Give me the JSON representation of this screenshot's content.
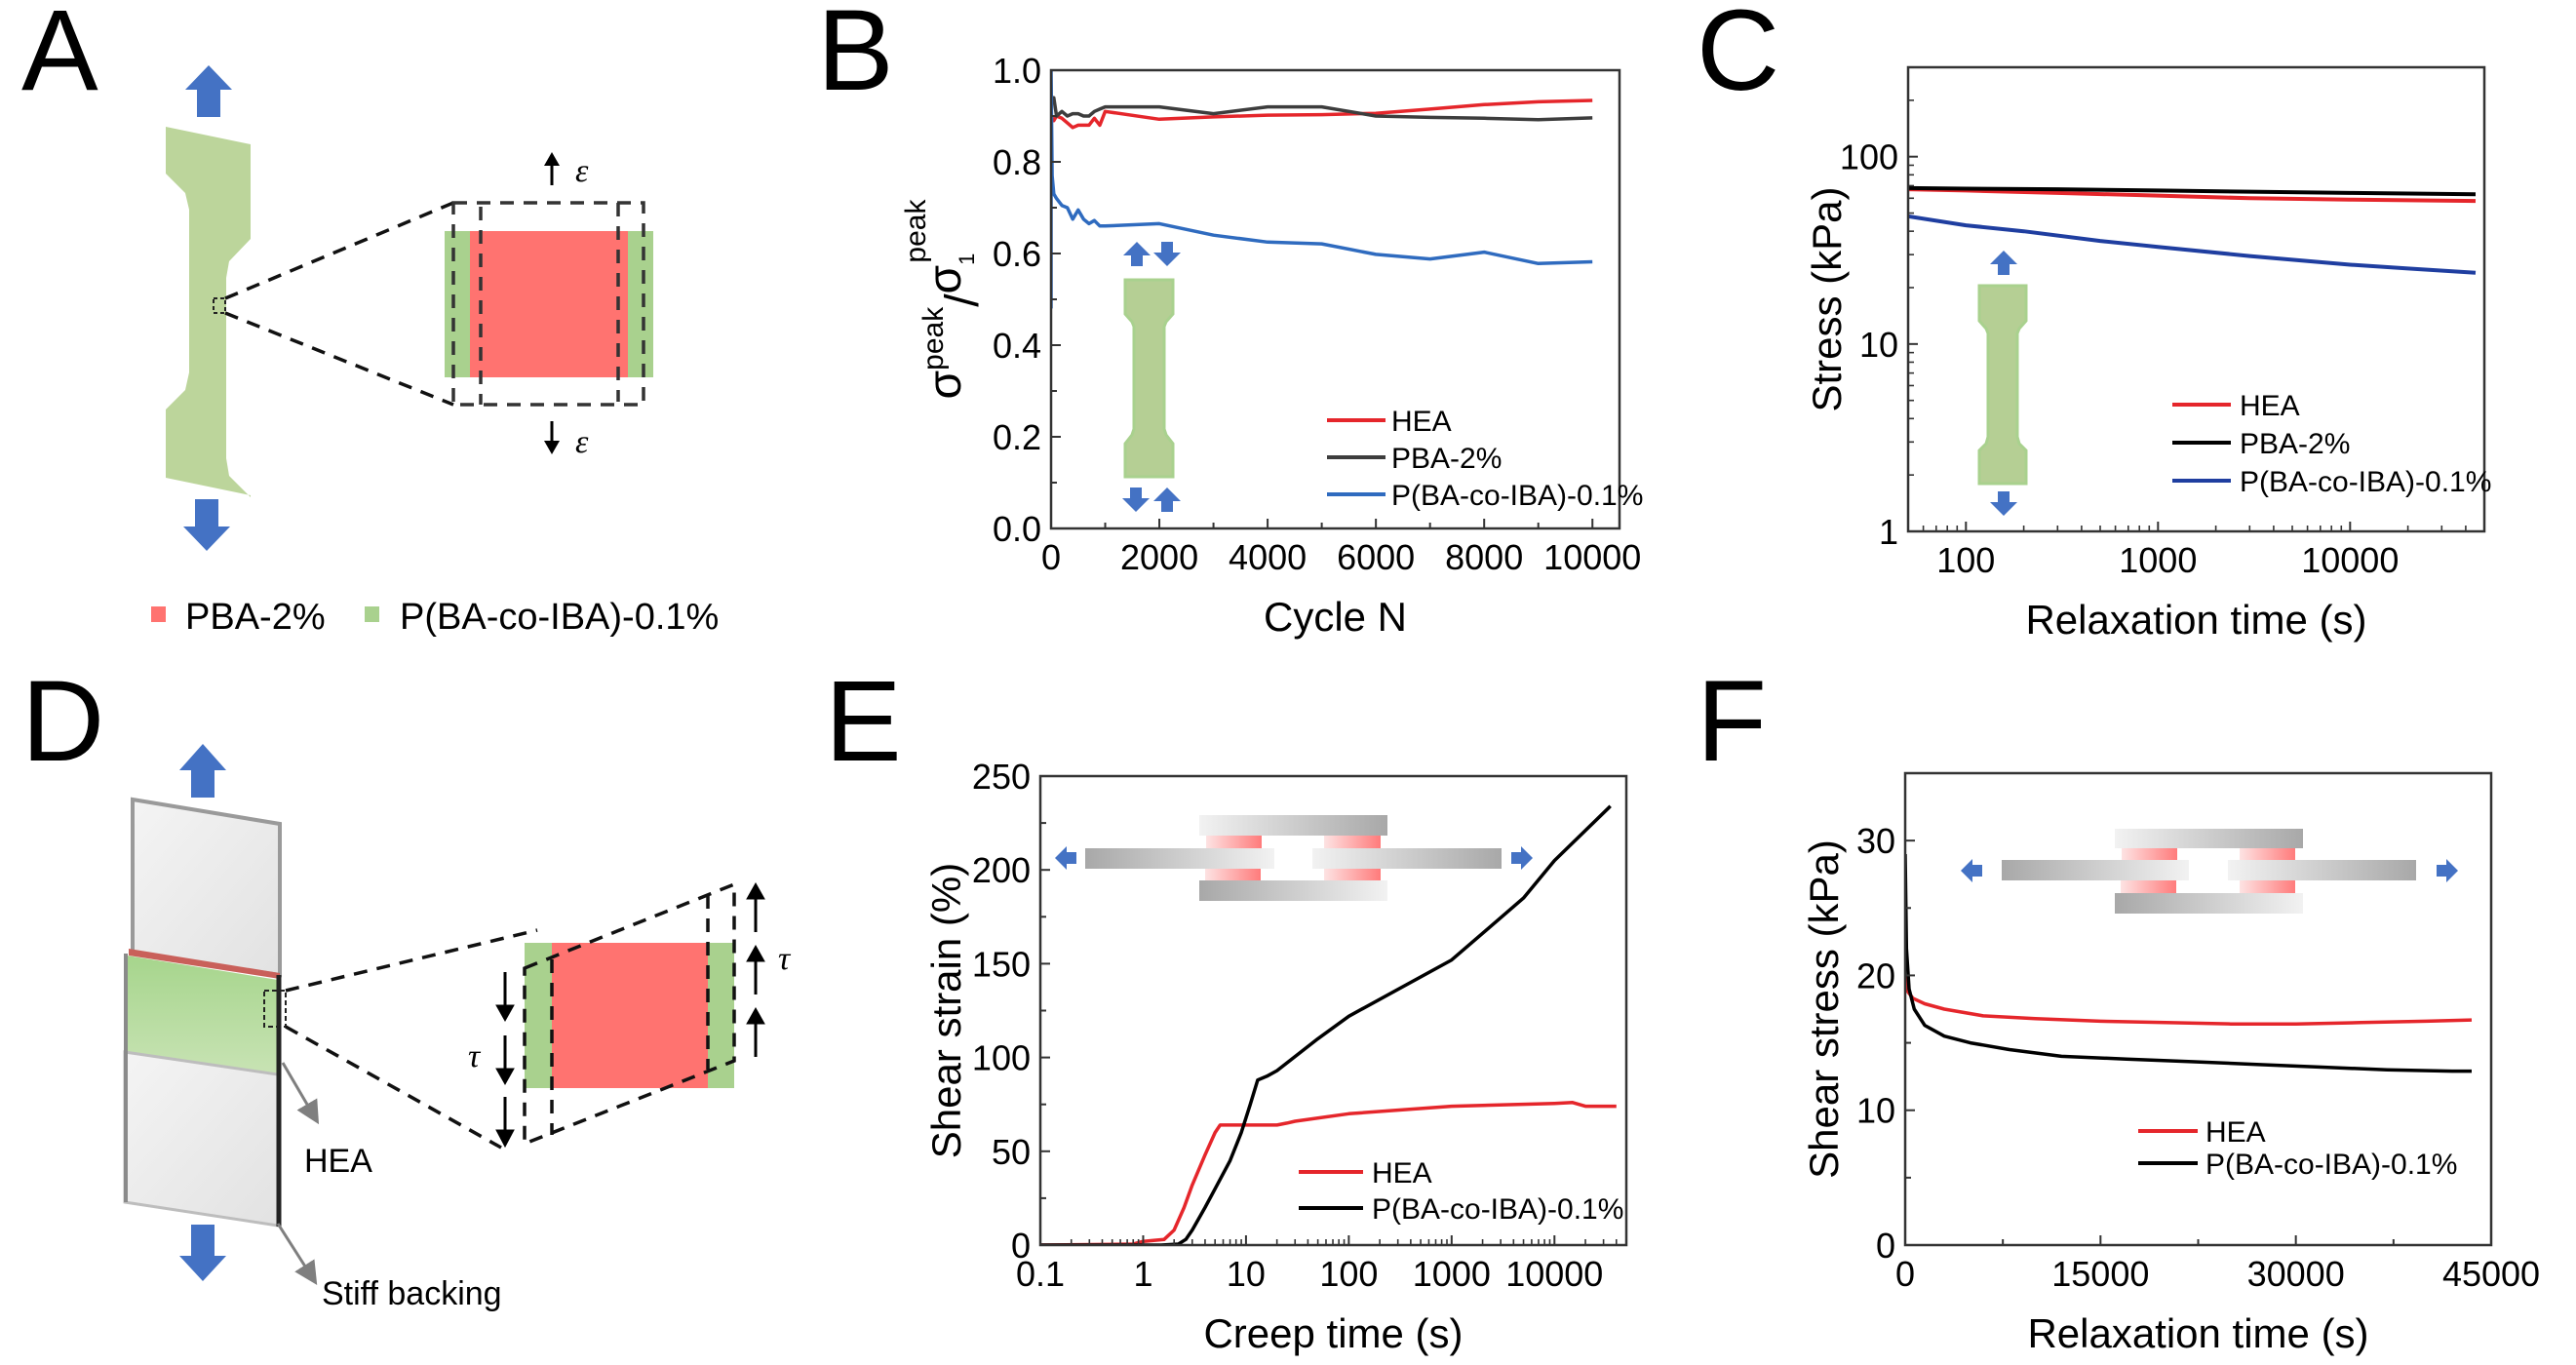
{
  "figure": {
    "panel_labels": [
      "A",
      "B",
      "C",
      "D",
      "E",
      "F"
    ],
    "colors": {
      "pba": "#ff7370",
      "copolymer": "#a9d18e",
      "specimen": "#bcd59b",
      "arrow_blue": "#4472c4",
      "hea_line": "#e5262b",
      "pba_line_b": "#3d3d3d",
      "black_line": "#000000",
      "blue_line_b": "#2f6bbf",
      "blue_line_c": "#1f3ea0"
    }
  },
  "panel_a": {
    "strain_symbol": "ε",
    "legend": [
      {
        "label": "PBA-2%",
        "color": "#ff7370"
      },
      {
        "label": "P(BA-co-IBA)-0.1%",
        "color": "#a9d18e"
      }
    ]
  },
  "panel_d": {
    "shear_symbol": "τ",
    "annotations": {
      "hea": "HEA",
      "backing": "Stiff backing"
    }
  },
  "chart_data": [
    {
      "id": "B",
      "type": "line",
      "title": "",
      "xlabel": "Cycle N",
      "ylabel_parts": {
        "main": "σ",
        "sup1": "peak",
        "slash": "/",
        "main2": "σ",
        "sub2": "1",
        "sup2": "peak"
      },
      "xscale": "linear",
      "xlim": [
        0,
        10500
      ],
      "ylim": [
        0,
        1.0
      ],
      "xticks": [
        0,
        2000,
        4000,
        6000,
        8000,
        10000
      ],
      "xtick_labels": [
        "0",
        "2000",
        "4000",
        "6000",
        "8000",
        "10000"
      ],
      "xminor": [
        1000,
        3000,
        5000,
        7000,
        9000
      ],
      "yticks": [
        0,
        0.2,
        0.4,
        0.6,
        0.8,
        1.0
      ],
      "ytick_labels": [
        "0.0",
        "0.2",
        "0.4",
        "0.6",
        "0.8",
        "1.0"
      ],
      "yminor": [
        0.1,
        0.3,
        0.5,
        0.7,
        0.9
      ],
      "legend_position": "bottom-right",
      "series": [
        {
          "name": "HEA",
          "color": "#e5262b",
          "x": [
            0,
            50,
            100,
            200,
            300,
            400,
            500,
            600,
            700,
            800,
            900,
            1000,
            2000,
            3000,
            4000,
            5000,
            6000,
            7000,
            8000,
            9000,
            10000
          ],
          "y": [
            0.9,
            0.89,
            0.9,
            0.895,
            0.885,
            0.875,
            0.88,
            0.88,
            0.88,
            0.895,
            0.88,
            0.91,
            0.893,
            0.898,
            0.902,
            0.903,
            0.906,
            0.915,
            0.925,
            0.931,
            0.934
          ]
        },
        {
          "name": "PBA-2%",
          "color": "#3d3d3d",
          "x": [
            0,
            50,
            100,
            200,
            300,
            400,
            500,
            600,
            700,
            800,
            900,
            1000,
            2000,
            3000,
            4000,
            5000,
            6000,
            7000,
            8000,
            9000,
            10000
          ],
          "y": [
            0.93,
            0.94,
            0.9,
            0.91,
            0.9,
            0.905,
            0.905,
            0.9,
            0.9,
            0.91,
            0.915,
            0.92,
            0.92,
            0.905,
            0.92,
            0.92,
            0.9,
            0.897,
            0.895,
            0.892,
            0.896
          ]
        },
        {
          "name": "P(BA-co-IBA)-0.1%",
          "color": "#2f6bbf",
          "x": [
            0,
            0,
            20,
            50,
            100,
            200,
            300,
            400,
            500,
            600,
            700,
            800,
            900,
            1000,
            2000,
            3000,
            4000,
            5000,
            6000,
            7000,
            8000,
            9000,
            10000
          ],
          "y": [
            0.48,
            1.0,
            0.77,
            0.73,
            0.72,
            0.705,
            0.7,
            0.675,
            0.695,
            0.675,
            0.665,
            0.672,
            0.66,
            0.66,
            0.665,
            0.64,
            0.625,
            0.621,
            0.598,
            0.588,
            0.603,
            0.578,
            0.582
          ]
        }
      ]
    },
    {
      "id": "C",
      "type": "line",
      "title": "",
      "xlabel": "Relaxation time (s)",
      "ylabel": "Stress (kPa)",
      "xscale": "log",
      "yscale": "log",
      "xlim": [
        50,
        50000
      ],
      "ylim": [
        1,
        300
      ],
      "xticks": [
        100,
        1000,
        10000
      ],
      "xtick_labels": [
        "100",
        "1000",
        "10000"
      ],
      "yticks": [
        1,
        10,
        100
      ],
      "ytick_labels": [
        "1",
        "10",
        "100"
      ],
      "legend_position": "bottom-right",
      "series": [
        {
          "name": "HEA",
          "color": "#e5262b",
          "x": [
            50,
            100,
            300,
            1000,
            3000,
            10000,
            45000
          ],
          "y": [
            67,
            66,
            64,
            62,
            60,
            59,
            58
          ]
        },
        {
          "name": "PBA-2%",
          "color": "#000000",
          "x": [
            50,
            100,
            300,
            1000,
            3000,
            10000,
            45000
          ],
          "y": [
            68,
            67.5,
            67,
            66,
            65,
            64,
            63
          ]
        },
        {
          "name": "P(BA-co-IBA)-0.1%",
          "color": "#1f3ea0",
          "x": [
            50,
            100,
            200,
            500,
            1000,
            3000,
            10000,
            20000,
            45000
          ],
          "y": [
            48,
            43,
            40,
            35.5,
            33,
            29.5,
            26.5,
            25.3,
            24
          ]
        }
      ]
    },
    {
      "id": "E",
      "type": "line",
      "title": "",
      "xlabel": "Creep time (s)",
      "ylabel": "Shear strain (%)",
      "xscale": "log",
      "xlim": [
        0.1,
        50000
      ],
      "ylim": [
        0,
        250
      ],
      "xticks": [
        0.1,
        1,
        10,
        100,
        1000,
        10000
      ],
      "xtick_labels": [
        "0.1",
        "1",
        "10",
        "100",
        "1000",
        "10000"
      ],
      "yticks": [
        0,
        50,
        100,
        150,
        200,
        250
      ],
      "ytick_labels": [
        "0",
        "50",
        "100",
        "150",
        "200",
        "250"
      ],
      "yminor": [
        25,
        75,
        125,
        175,
        225
      ],
      "legend_position": "bottom-right",
      "series": [
        {
          "name": "HEA",
          "color": "#e5262b",
          "x": [
            0.1,
            0.8,
            1.0,
            1.6,
            2.0,
            2.5,
            3.0,
            4.0,
            5.0,
            5.6,
            6,
            10,
            20,
            25,
            30,
            100,
            1000,
            10000,
            15000,
            20000,
            40000
          ],
          "y": [
            0,
            0.5,
            2,
            3,
            8,
            20,
            32,
            48,
            60,
            64,
            64,
            64,
            64,
            65,
            66,
            70,
            74,
            75.5,
            76,
            74,
            74
          ]
        },
        {
          "name": "P(BA-co-IBA)-0.1%",
          "color": "#000000",
          "x": [
            0.1,
            1.5,
            2.2,
            2.6,
            3.0,
            4.0,
            5.0,
            7.0,
            9.0,
            11,
            13,
            16,
            20,
            50,
            100,
            1000,
            5000,
            10000,
            35000
          ],
          "y": [
            0,
            0,
            0.5,
            3,
            8,
            20,
            30,
            45,
            60,
            75,
            88,
            90,
            93,
            110,
            122,
            152,
            185,
            205,
            234
          ]
        }
      ]
    },
    {
      "id": "F",
      "type": "line",
      "title": "",
      "xlabel": "Relaxation time (s)",
      "ylabel": "Shear stress (kPa)",
      "xscale": "linear",
      "xlim": [
        0,
        45000
      ],
      "ylim": [
        0,
        35
      ],
      "xticks": [
        0,
        15000,
        30000,
        45000
      ],
      "xtick_labels": [
        "0",
        "15000",
        "30000",
        "45000"
      ],
      "xminor": [
        7500,
        22500,
        37500
      ],
      "yticks": [
        0,
        10,
        20,
        30
      ],
      "ytick_labels": [
        "0",
        "10",
        "20",
        "30"
      ],
      "yminor": [
        5,
        15,
        25
      ],
      "legend_position": "center-right",
      "series": [
        {
          "name": "HEA",
          "color": "#e5262b",
          "x": [
            0,
            200,
            600,
            1500,
            3000,
            6000,
            10000,
            15000,
            20000,
            25000,
            30000,
            35000,
            40000,
            43500
          ],
          "y": [
            20,
            18.8,
            18.3,
            17.9,
            17.5,
            17.0,
            16.8,
            16.6,
            16.5,
            16.4,
            16.4,
            16.5,
            16.6,
            16.7
          ]
        },
        {
          "name": "P(BA-co-IBA)-0.1%",
          "color": "#000000",
          "x": [
            0,
            100,
            300,
            700,
            1500,
            3000,
            5000,
            8000,
            12000,
            17000,
            22000,
            27000,
            32000,
            37000,
            42000,
            43500
          ],
          "y": [
            29,
            22,
            19,
            17.5,
            16.3,
            15.5,
            15.0,
            14.5,
            14.0,
            13.8,
            13.6,
            13.4,
            13.2,
            13.0,
            12.9,
            12.9
          ]
        }
      ]
    }
  ]
}
